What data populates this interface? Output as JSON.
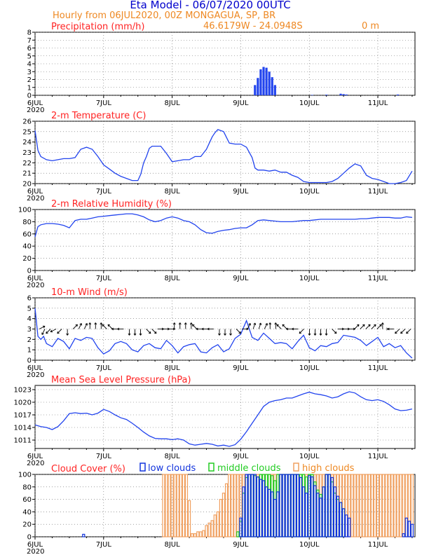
{
  "header": {
    "title": "Eta Model - 06/07/2020 00UTC",
    "subtitle": "Hourly from 06JUL2020, 00Z  MONGAGUA, SP, BR",
    "coords": "46.6179W - 24.0948S",
    "elevation": "0   m"
  },
  "colors": {
    "title": "#0000cc",
    "subtitle": "#ee8822",
    "panel_title": "#ff2222",
    "line": "#2244ee",
    "precip": "#2244ee",
    "arrow": "#000000",
    "low": "#1133dd",
    "middle": "#22cc22",
    "high": "#f0a060"
  },
  "time_axis": {
    "hours_total": 133,
    "date_ticks": [
      {
        "label": "6JUL",
        "hour": 0
      },
      {
        "label": "7JUL",
        "hour": 24
      },
      {
        "label": "8JUL",
        "hour": 48
      },
      {
        "label": "9JUL",
        "hour": 72
      },
      {
        "label": "10JUL",
        "hour": 96
      },
      {
        "label": "11JUL",
        "hour": 120
      }
    ],
    "year_label": "2020"
  },
  "chart_data": [
    {
      "type": "bar",
      "title": "Precipitation (mm/h)",
      "ylim": [
        0,
        8
      ],
      "yticks": [
        "0",
        "1",
        "2",
        "3",
        "4",
        "5",
        "6",
        "7",
        "8"
      ],
      "x": [
        77,
        78,
        79,
        80,
        81,
        82,
        83,
        84,
        97,
        102,
        107,
        108,
        109,
        127
      ],
      "values": [
        1.3,
        2.2,
        3.3,
        3.6,
        3.5,
        3.0,
        2.3,
        1.3,
        0.05,
        0.08,
        0.2,
        0.15,
        0.1,
        0.1
      ]
    },
    {
      "type": "line",
      "title": "2-m Temperature (C)",
      "ylim": [
        20,
        26
      ],
      "yticks": [
        "20",
        "21",
        "22",
        "23",
        "24",
        "25",
        "26"
      ],
      "x": [
        0,
        1,
        2,
        4,
        6,
        8,
        10,
        12,
        14,
        15,
        16,
        18,
        20,
        22,
        24,
        26,
        28,
        30,
        32,
        34,
        36,
        37,
        38,
        39,
        40,
        41,
        42,
        44,
        46,
        48,
        50,
        52,
        54,
        56,
        58,
        60,
        61,
        62,
        63,
        64,
        66,
        68,
        70,
        71,
        72,
        74,
        76,
        77,
        78,
        80,
        82,
        84,
        86,
        88,
        90,
        92,
        94,
        96,
        98,
        100,
        102,
        104,
        106,
        108,
        110,
        112,
        114,
        116,
        118,
        120,
        122,
        124,
        126,
        128,
        130,
        132
      ],
      "values": [
        25.1,
        23.2,
        22.6,
        22.3,
        22.2,
        22.3,
        22.4,
        22.4,
        22.5,
        22.9,
        23.3,
        23.5,
        23.3,
        22.6,
        21.8,
        21.4,
        21.0,
        20.7,
        20.5,
        20.3,
        20.3,
        20.9,
        22.0,
        22.6,
        23.4,
        23.6,
        23.6,
        23.6,
        22.9,
        22.1,
        22.2,
        22.3,
        22.3,
        22.6,
        22.6,
        23.3,
        23.9,
        24.5,
        24.9,
        25.2,
        25.0,
        23.9,
        23.8,
        23.8,
        23.8,
        23.5,
        22.5,
        21.5,
        21.3,
        21.3,
        21.2,
        21.3,
        21.1,
        21.1,
        20.8,
        20.6,
        20.2,
        20.1,
        20.1,
        20.1,
        20.1,
        20.2,
        20.5,
        21.0,
        21.5,
        21.9,
        21.7,
        20.8,
        20.5,
        20.4,
        20.2,
        20.0,
        20.0,
        20.1,
        20.3,
        21.2
      ]
    },
    {
      "type": "line",
      "title": "2-m Relative Humidity (%)",
      "ylim": [
        0,
        100
      ],
      "yticks": [
        "0",
        "20",
        "40",
        "60",
        "80",
        "100"
      ],
      "x": [
        0,
        1,
        2,
        4,
        6,
        8,
        10,
        12,
        14,
        16,
        18,
        20,
        22,
        24,
        26,
        28,
        30,
        32,
        34,
        36,
        38,
        40,
        42,
        44,
        46,
        48,
        50,
        52,
        54,
        56,
        58,
        60,
        62,
        64,
        66,
        68,
        70,
        72,
        74,
        76,
        78,
        80,
        82,
        84,
        86,
        88,
        90,
        92,
        94,
        96,
        98,
        100,
        102,
        104,
        106,
        108,
        110,
        112,
        114,
        116,
        118,
        120,
        122,
        124,
        126,
        128,
        130,
        132
      ],
      "values": [
        55,
        72,
        75,
        77,
        77,
        76,
        74,
        70,
        82,
        84,
        84,
        86,
        88,
        89,
        90,
        91,
        92,
        93,
        93,
        91,
        88,
        83,
        80,
        82,
        86,
        88,
        86,
        82,
        80,
        75,
        67,
        62,
        61,
        64,
        66,
        67,
        69,
        70,
        70,
        75,
        82,
        83,
        82,
        81,
        80,
        80,
        80,
        81,
        82,
        82,
        83,
        84,
        84,
        84,
        84,
        84,
        84,
        84,
        85,
        85,
        86,
        87,
        87,
        87,
        86,
        86,
        88,
        87
      ]
    },
    {
      "type": "line",
      "title": "10-m Wind (m/s)",
      "ylim": [
        0,
        6
      ],
      "yticks": [
        "0",
        "1",
        "2",
        "3",
        "4",
        "5",
        "6"
      ],
      "x": [
        0,
        1,
        2,
        3,
        4,
        6,
        8,
        10,
        12,
        14,
        16,
        18,
        20,
        22,
        24,
        26,
        28,
        30,
        32,
        34,
        36,
        38,
        40,
        42,
        44,
        46,
        48,
        50,
        52,
        54,
        56,
        58,
        60,
        62,
        64,
        66,
        68,
        70,
        72,
        74,
        76,
        78,
        80,
        82,
        84,
        86,
        88,
        90,
        92,
        94,
        96,
        98,
        100,
        102,
        104,
        106,
        108,
        110,
        112,
        114,
        116,
        118,
        120,
        122,
        124,
        126,
        128,
        130,
        132
      ],
      "values": [
        5.0,
        2.3,
        2.0,
        2.3,
        1.6,
        1.3,
        2.1,
        1.8,
        1.1,
        2.1,
        1.9,
        2.2,
        2.1,
        1.2,
        0.6,
        0.9,
        1.6,
        1.8,
        1.6,
        1.0,
        0.8,
        1.4,
        1.6,
        1.2,
        1.1,
        1.9,
        1.4,
        0.7,
        1.3,
        1.5,
        1.6,
        0.8,
        0.7,
        1.2,
        1.5,
        0.8,
        1.1,
        2.1,
        2.5,
        3.8,
        2.2,
        1.9,
        2.6,
        2.1,
        1.6,
        1.7,
        1.6,
        1.1,
        1.8,
        2.4,
        1.2,
        0.9,
        1.4,
        1.3,
        1.6,
        1.7,
        2.4,
        2.3,
        2.2,
        1.9,
        1.4,
        1.8,
        2.2,
        1.3,
        1.6,
        1.2,
        1.4,
        0.7,
        0.2
      ],
      "vectors_u": [
        2,
        -1,
        -2,
        -2,
        -1,
        0,
        1,
        1,
        1,
        0,
        0,
        0,
        -1,
        -1,
        -1,
        -1,
        0,
        0,
        0,
        1,
        1,
        1,
        1,
        1,
        0,
        0,
        0,
        0,
        -1,
        -1,
        -1,
        -1,
        0,
        0,
        0,
        1,
        1,
        1,
        1,
        1,
        1,
        0,
        0,
        -1,
        -1,
        -1,
        -1,
        -1,
        0,
        0,
        0,
        0,
        1,
        1,
        1,
        1,
        1,
        1,
        1,
        1,
        1,
        0,
        0,
        -1,
        -1,
        -1,
        -1
      ],
      "vectors_v": [
        1,
        -2,
        -2,
        -1,
        -1,
        -1,
        1,
        2,
        2,
        2,
        1,
        1,
        1,
        1,
        0,
        0,
        -1,
        -1,
        -1,
        -1,
        -1,
        0,
        0,
        0,
        1,
        1,
        1,
        1,
        1,
        0,
        0,
        0,
        -1,
        -1,
        -1,
        -1,
        0,
        2,
        3,
        3,
        2,
        2,
        1,
        1,
        1,
        0,
        0,
        -1,
        -1,
        -1,
        -1,
        -1,
        -1,
        0,
        0,
        0,
        1,
        1,
        1,
        1,
        1,
        1,
        0,
        0,
        -1,
        -1,
        -1
      ]
    },
    {
      "type": "line",
      "title": "Mean Sea Level Pressure (hPa)",
      "ylim": [
        1009,
        1024
      ],
      "yticks": [
        "1011",
        "1014",
        "1017",
        "1020",
        "1023"
      ],
      "x": [
        0,
        2,
        4,
        6,
        8,
        10,
        12,
        14,
        16,
        18,
        20,
        22,
        24,
        26,
        28,
        30,
        32,
        34,
        36,
        38,
        40,
        42,
        44,
        46,
        48,
        50,
        52,
        54,
        56,
        58,
        60,
        62,
        64,
        66,
        68,
        70,
        72,
        74,
        76,
        78,
        80,
        82,
        84,
        86,
        88,
        90,
        92,
        94,
        96,
        98,
        100,
        102,
        104,
        106,
        108,
        110,
        112,
        114,
        116,
        118,
        120,
        122,
        124,
        126,
        128,
        130,
        132
      ],
      "values": [
        1014.6,
        1014.2,
        1014.0,
        1013.5,
        1014.2,
        1015.6,
        1017.3,
        1017.5,
        1017.3,
        1017.4,
        1017.0,
        1017.4,
        1018.3,
        1017.8,
        1017.0,
        1016.3,
        1015.9,
        1015.0,
        1014.0,
        1012.9,
        1012.0,
        1011.4,
        1011.3,
        1011.3,
        1011.1,
        1011.3,
        1011.0,
        1010.1,
        1009.8,
        1010.0,
        1010.2,
        1010.0,
        1009.6,
        1009.8,
        1009.5,
        1009.9,
        1011.2,
        1013.0,
        1015.0,
        1017.0,
        1019.0,
        1020.0,
        1020.4,
        1020.6,
        1021.0,
        1021.0,
        1021.5,
        1022.0,
        1022.4,
        1022.0,
        1021.8,
        1021.5,
        1021.0,
        1021.3,
        1022.0,
        1022.5,
        1022.2,
        1021.3,
        1020.6,
        1020.4,
        1020.6,
        1020.2,
        1019.4,
        1018.4,
        1018.0,
        1018.1,
        1018.4
      ]
    },
    {
      "type": "bar",
      "title": "Cloud Cover (%)",
      "legend": [
        "low clouds",
        "middle clouds",
        "high clouds"
      ],
      "ylim": [
        0,
        100
      ],
      "yticks": [
        "0",
        "20",
        "40",
        "60",
        "80",
        "100"
      ],
      "series": [
        {
          "name": "high clouds",
          "x": [
            45,
            46,
            47,
            48,
            49,
            50,
            51,
            52,
            53,
            54,
            55,
            56,
            57,
            58,
            59,
            60,
            61,
            62,
            63,
            64,
            65,
            66,
            67,
            68,
            69,
            70,
            71,
            72,
            73,
            74,
            75,
            76,
            77,
            78,
            79,
            80,
            81,
            82,
            83,
            84,
            85,
            86,
            87,
            88,
            89,
            90,
            91,
            92,
            93,
            94,
            95,
            96,
            97,
            98,
            99,
            100,
            101,
            102,
            103,
            104,
            105,
            106,
            107,
            108,
            109,
            110,
            111,
            112,
            113,
            114,
            115,
            116,
            117,
            118,
            119,
            120,
            121,
            122,
            123,
            124,
            125,
            126,
            127,
            128,
            129,
            130,
            131,
            132
          ],
          "values": [
            100,
            100,
            100,
            100,
            100,
            100,
            100,
            100,
            100,
            58,
            5,
            5,
            8,
            8,
            10,
            18,
            22,
            26,
            35,
            40,
            60,
            70,
            85,
            100,
            100,
            100,
            100,
            100,
            100,
            100,
            100,
            100,
            100,
            100,
            100,
            100,
            100,
            100,
            100,
            100,
            100,
            100,
            100,
            100,
            100,
            100,
            100,
            100,
            100,
            100,
            100,
            100,
            100,
            100,
            100,
            100,
            100,
            100,
            100,
            100,
            100,
            100,
            100,
            100,
            100,
            100,
            100,
            100,
            100,
            100,
            100,
            100,
            100,
            100,
            100,
            100,
            100,
            100,
            100,
            100,
            100,
            100,
            100,
            100,
            100,
            100,
            100,
            100
          ]
        },
        {
          "name": "middle clouds",
          "x": [
            71,
            72,
            73,
            74,
            75,
            76,
            77,
            78,
            79,
            80,
            81,
            82,
            83,
            84,
            85,
            86,
            87,
            88,
            89,
            90,
            91,
            92,
            93,
            94,
            95,
            96,
            97,
            98,
            99,
            100,
            101,
            102,
            103,
            104,
            105,
            106,
            107,
            108
          ],
          "values": [
            8,
            25,
            70,
            95,
            100,
            100,
            98,
            96,
            100,
            100,
            100,
            100,
            98,
            90,
            100,
            100,
            100,
            100,
            100,
            100,
            100,
            100,
            100,
            100,
            96,
            100,
            100,
            88,
            75,
            68,
            80,
            100,
            100,
            88,
            70,
            60,
            55,
            45
          ]
        },
        {
          "name": "low clouds",
          "x": [
            17,
            72,
            73,
            74,
            75,
            76,
            77,
            78,
            79,
            80,
            81,
            82,
            83,
            84,
            85,
            86,
            87,
            88,
            89,
            90,
            91,
            92,
            93,
            94,
            95,
            96,
            97,
            98,
            99,
            100,
            101,
            102,
            103,
            104,
            105,
            106,
            107,
            108,
            109,
            110,
            111,
            112,
            113,
            114,
            115,
            116,
            117,
            118,
            119,
            120,
            121,
            122,
            123,
            124,
            125,
            126,
            127,
            128,
            129,
            130,
            131,
            132
          ],
          "values": [
            4,
            30,
            80,
            100,
            100,
            100,
            100,
            96,
            92,
            90,
            80,
            76,
            72,
            60,
            72,
            100,
            100,
            100,
            100,
            100,
            100,
            100,
            95,
            80,
            70,
            98,
            96,
            82,
            70,
            62,
            80,
            100,
            100,
            95,
            80,
            65,
            55,
            45,
            35,
            30,
            0,
            0,
            0,
            0,
            0,
            0,
            0,
            0,
            0,
            0,
            0,
            0,
            0,
            0,
            0,
            0,
            0,
            0,
            5,
            30,
            25,
            20
          ]
        }
      ]
    }
  ]
}
